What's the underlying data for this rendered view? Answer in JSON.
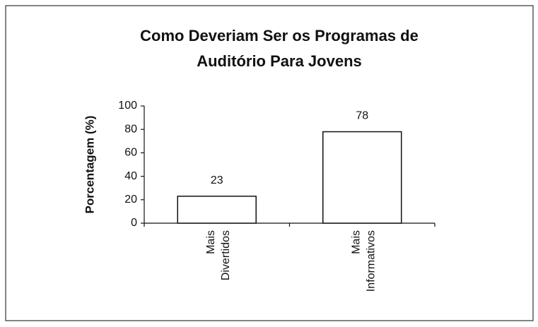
{
  "chart_data": {
    "type": "bar",
    "title": [
      "Como Deveriam Ser os Programas de",
      "Auditório Para Jovens"
    ],
    "y_label": "Porcentagem (%)",
    "categories": [
      "Mais Divertidos",
      "Mais Informativos"
    ],
    "values": [
      23,
      78
    ],
    "color": "#ffffff",
    "ylim": [
      0,
      100
    ],
    "yticks": [
      0,
      20,
      40,
      60,
      80,
      100
    ],
    "grid": false
  }
}
